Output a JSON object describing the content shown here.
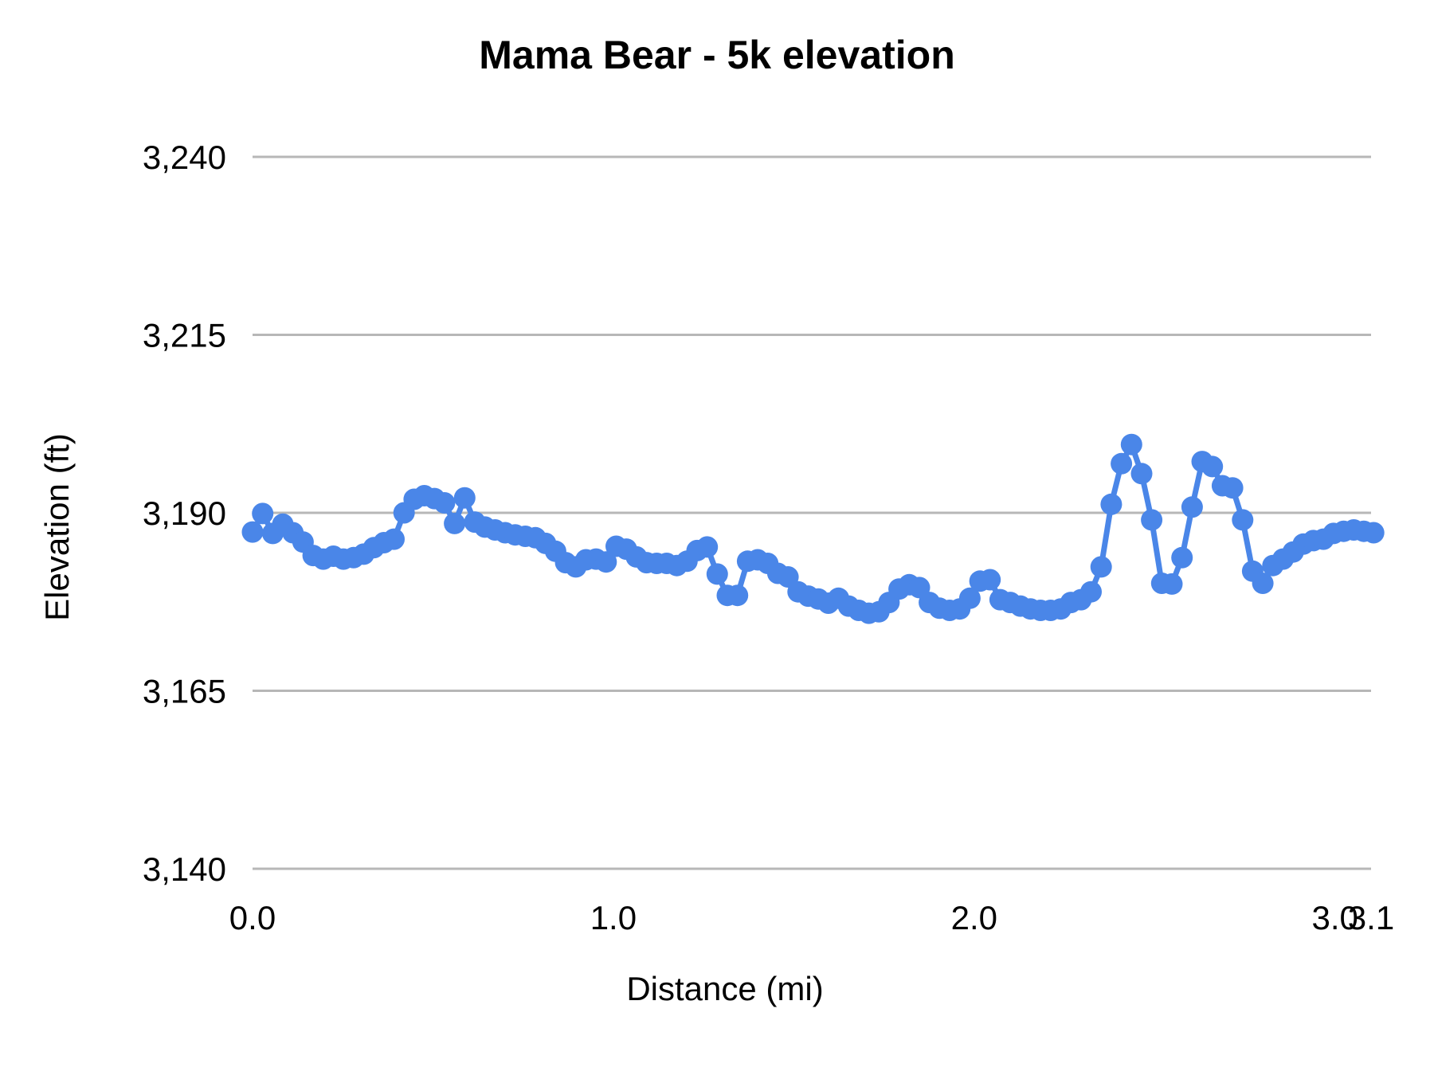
{
  "chart_data": {
    "type": "line",
    "title": "Mama Bear - 5k elevation",
    "xlabel": "Distance (mi)",
    "ylabel": "Elevation (ft)",
    "xlim": [
      0,
      3.1
    ],
    "ylim": [
      3140,
      3240
    ],
    "grid": true,
    "legend": "none",
    "x_ticks": [
      {
        "value": 0.0,
        "label": "0.0"
      },
      {
        "value": 1.0,
        "label": "1.0"
      },
      {
        "value": 2.0,
        "label": "2.0"
      },
      {
        "value": 3.0,
        "label": "3.0"
      },
      {
        "value": 3.1,
        "label": "3.1"
      }
    ],
    "y_ticks": [
      {
        "value": 3140,
        "label": "3,140"
      },
      {
        "value": 3165,
        "label": "3,165"
      },
      {
        "value": 3190,
        "label": "3,190"
      },
      {
        "value": 3215,
        "label": "3,215"
      },
      {
        "value": 3240,
        "label": "3,240"
      }
    ],
    "style": {
      "series_color": "#4a86e8",
      "gridline_color": "#b7b7b7",
      "text_color": "#000000",
      "background": "#ffffff"
    },
    "series": [
      {
        "name": "Elevation",
        "points": [
          [
            0.0,
            3187.3
          ],
          [
            0.028,
            3189.9
          ],
          [
            0.056,
            3187.1
          ],
          [
            0.084,
            3188.4
          ],
          [
            0.112,
            3187.2
          ],
          [
            0.14,
            3185.9
          ],
          [
            0.168,
            3184.0
          ],
          [
            0.196,
            3183.5
          ],
          [
            0.224,
            3183.9
          ],
          [
            0.252,
            3183.5
          ],
          [
            0.28,
            3183.7
          ],
          [
            0.308,
            3184.2
          ],
          [
            0.336,
            3185.1
          ],
          [
            0.364,
            3185.8
          ],
          [
            0.392,
            3186.3
          ],
          [
            0.42,
            3190.0
          ],
          [
            0.448,
            3191.9
          ],
          [
            0.476,
            3192.4
          ],
          [
            0.504,
            3192.0
          ],
          [
            0.532,
            3191.4
          ],
          [
            0.56,
            3188.5
          ],
          [
            0.588,
            3192.1
          ],
          [
            0.616,
            3188.7
          ],
          [
            0.644,
            3188.0
          ],
          [
            0.672,
            3187.6
          ],
          [
            0.7,
            3187.2
          ],
          [
            0.728,
            3186.9
          ],
          [
            0.756,
            3186.7
          ],
          [
            0.784,
            3186.5
          ],
          [
            0.812,
            3185.7
          ],
          [
            0.84,
            3184.6
          ],
          [
            0.868,
            3183.0
          ],
          [
            0.896,
            3182.4
          ],
          [
            0.924,
            3183.4
          ],
          [
            0.952,
            3183.5
          ],
          [
            0.98,
            3183.1
          ],
          [
            1.008,
            3185.3
          ],
          [
            1.036,
            3184.9
          ],
          [
            1.064,
            3183.8
          ],
          [
            1.092,
            3183.0
          ],
          [
            1.12,
            3182.9
          ],
          [
            1.148,
            3182.9
          ],
          [
            1.176,
            3182.6
          ],
          [
            1.204,
            3183.2
          ],
          [
            1.232,
            3184.7
          ],
          [
            1.26,
            3185.2
          ],
          [
            1.288,
            3181.4
          ],
          [
            1.316,
            3178.4
          ],
          [
            1.344,
            3178.4
          ],
          [
            1.372,
            3183.2
          ],
          [
            1.4,
            3183.4
          ],
          [
            1.428,
            3182.9
          ],
          [
            1.456,
            3181.5
          ],
          [
            1.484,
            3181.0
          ],
          [
            1.512,
            3178.9
          ],
          [
            1.54,
            3178.3
          ],
          [
            1.568,
            3177.9
          ],
          [
            1.596,
            3177.3
          ],
          [
            1.624,
            3178.0
          ],
          [
            1.652,
            3176.9
          ],
          [
            1.68,
            3176.3
          ],
          [
            1.708,
            3175.9
          ],
          [
            1.736,
            3176.1
          ],
          [
            1.764,
            3177.4
          ],
          [
            1.792,
            3179.3
          ],
          [
            1.82,
            3179.9
          ],
          [
            1.848,
            3179.5
          ],
          [
            1.876,
            3177.4
          ],
          [
            1.904,
            3176.6
          ],
          [
            1.932,
            3176.3
          ],
          [
            1.96,
            3176.5
          ],
          [
            1.988,
            3178.0
          ],
          [
            2.016,
            3180.4
          ],
          [
            2.044,
            3180.6
          ],
          [
            2.072,
            3177.8
          ],
          [
            2.1,
            3177.4
          ],
          [
            2.128,
            3176.9
          ],
          [
            2.156,
            3176.5
          ],
          [
            2.184,
            3176.3
          ],
          [
            2.212,
            3176.3
          ],
          [
            2.24,
            3176.5
          ],
          [
            2.268,
            3177.4
          ],
          [
            2.296,
            3177.8
          ],
          [
            2.324,
            3178.9
          ],
          [
            2.352,
            3182.4
          ],
          [
            2.38,
            3191.2
          ],
          [
            2.408,
            3196.9
          ],
          [
            2.436,
            3199.6
          ],
          [
            2.464,
            3195.5
          ],
          [
            2.492,
            3189.0
          ],
          [
            2.52,
            3180.1
          ],
          [
            2.548,
            3180.0
          ],
          [
            2.576,
            3183.7
          ],
          [
            2.604,
            3190.8
          ],
          [
            2.632,
            3197.2
          ],
          [
            2.66,
            3196.5
          ],
          [
            2.688,
            3193.8
          ],
          [
            2.716,
            3193.5
          ],
          [
            2.744,
            3189.0
          ],
          [
            2.772,
            3181.8
          ],
          [
            2.8,
            3180.1
          ],
          [
            2.828,
            3182.6
          ],
          [
            2.856,
            3183.5
          ],
          [
            2.884,
            3184.5
          ],
          [
            2.912,
            3185.6
          ],
          [
            2.94,
            3186.1
          ],
          [
            2.968,
            3186.3
          ],
          [
            2.996,
            3187.1
          ],
          [
            3.024,
            3187.4
          ],
          [
            3.052,
            3187.6
          ],
          [
            3.08,
            3187.4
          ],
          [
            3.107,
            3187.2
          ]
        ]
      }
    ]
  }
}
